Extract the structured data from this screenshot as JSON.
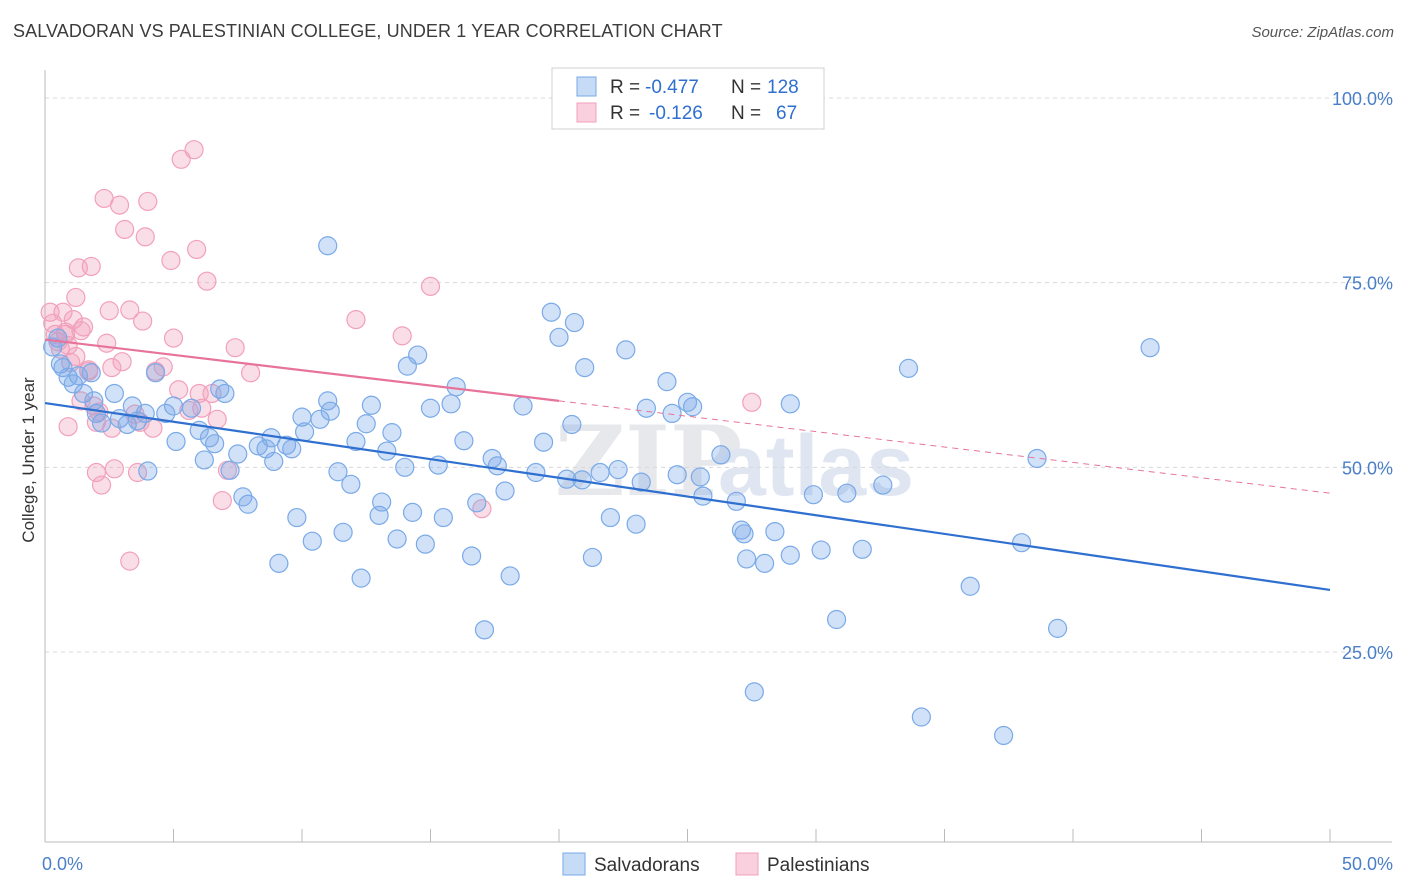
{
  "title": "SALVADORAN VS PALESTINIAN COLLEGE, UNDER 1 YEAR CORRELATION CHART",
  "source": "Source: ZipAtlas.com",
  "watermark": {
    "zip": "ZIP",
    "atlas": "atlas"
  },
  "colors": {
    "salvadoran": "#7aaae8",
    "salvadoran_line": "#2f6fd0",
    "palestinian": "#f2a0bb",
    "palestinian_line": "#e8739a",
    "axis_label": "#4a7fc8",
    "grid": "#d8d8d8"
  },
  "legend_top": {
    "rows": [
      {
        "r_label": "R = ",
        "r_value": "-0.477",
        "n_label": "N = ",
        "n_value": "128"
      },
      {
        "r_label": "R = ",
        "r_value": "-0.126",
        "n_label": "N = ",
        "n_value": "67"
      }
    ]
  },
  "chart_data": {
    "type": "scatter",
    "xlabel": "",
    "ylabel": "College, Under 1 year",
    "xlim": [
      0,
      50
    ],
    "ylim": [
      5,
      102
    ],
    "x_tick_labels": [
      {
        "value": 0,
        "label": "0.0%"
      },
      {
        "value": 50,
        "label": "50.0%"
      }
    ],
    "y_tick_labels": [
      {
        "value": 25,
        "label": "25.0%"
      },
      {
        "value": 50,
        "label": "50.0%"
      },
      {
        "value": 75,
        "label": "75.0%"
      },
      {
        "value": 100,
        "label": "100.0%"
      }
    ],
    "grid": "horizontal dashed",
    "legend_position": "bottom",
    "series": [
      {
        "name": "Salvadorans",
        "r": -0.477,
        "n": 128,
        "trend": {
          "x0": 0,
          "y0": 58.7,
          "x1": 50,
          "y1": 33.4
        },
        "points": [
          [
            0.3,
            66.3
          ],
          [
            0.5,
            67.5
          ],
          [
            0.6,
            64.0
          ],
          [
            0.7,
            63.5
          ],
          [
            0.9,
            62.2
          ],
          [
            1.1,
            61.3
          ],
          [
            1.3,
            62.4
          ],
          [
            1.5,
            60.0
          ],
          [
            1.8,
            62.8
          ],
          [
            1.9,
            59.0
          ],
          [
            2.0,
            57.3
          ],
          [
            2.2,
            56.0
          ],
          [
            2.7,
            60.0
          ],
          [
            2.9,
            56.6
          ],
          [
            3.2,
            55.8
          ],
          [
            3.4,
            58.3
          ],
          [
            3.6,
            56.3
          ],
          [
            3.9,
            57.3
          ],
          [
            4.0,
            49.5
          ],
          [
            4.3,
            62.8
          ],
          [
            4.7,
            57.3
          ],
          [
            5.0,
            58.3
          ],
          [
            5.1,
            53.5
          ],
          [
            5.7,
            58.0
          ],
          [
            6.0,
            55.0
          ],
          [
            6.2,
            51.0
          ],
          [
            6.4,
            54.0
          ],
          [
            6.6,
            53.2
          ],
          [
            6.8,
            60.6
          ],
          [
            7.0,
            60.0
          ],
          [
            7.2,
            49.6
          ],
          [
            7.5,
            51.8
          ],
          [
            7.7,
            46.0
          ],
          [
            7.9,
            45.0
          ],
          [
            8.3,
            52.9
          ],
          [
            8.6,
            52.5
          ],
          [
            8.8,
            54.0
          ],
          [
            8.9,
            50.8
          ],
          [
            9.1,
            37.0
          ],
          [
            9.4,
            53.0
          ],
          [
            9.6,
            52.5
          ],
          [
            9.8,
            43.2
          ],
          [
            10.0,
            56.8
          ],
          [
            10.1,
            54.8
          ],
          [
            10.4,
            40.0
          ],
          [
            10.7,
            56.5
          ],
          [
            11.0,
            59.0
          ],
          [
            11.1,
            57.6
          ],
          [
            11.4,
            49.4
          ],
          [
            11.0,
            80.0
          ],
          [
            11.6,
            41.2
          ],
          [
            11.9,
            47.7
          ],
          [
            12.1,
            53.5
          ],
          [
            12.3,
            35.0
          ],
          [
            12.5,
            55.9
          ],
          [
            12.7,
            58.4
          ],
          [
            13.0,
            43.5
          ],
          [
            13.1,
            45.3
          ],
          [
            13.3,
            52.2
          ],
          [
            13.5,
            54.7
          ],
          [
            13.7,
            40.3
          ],
          [
            14.0,
            50.0
          ],
          [
            14.1,
            63.7
          ],
          [
            14.3,
            43.9
          ],
          [
            14.5,
            65.2
          ],
          [
            14.8,
            39.6
          ],
          [
            15.0,
            58.0
          ],
          [
            15.3,
            50.3
          ],
          [
            15.5,
            43.2
          ],
          [
            15.8,
            58.6
          ],
          [
            16.0,
            60.9
          ],
          [
            16.3,
            53.6
          ],
          [
            16.6,
            38.0
          ],
          [
            16.8,
            45.2
          ],
          [
            17.1,
            28.0
          ],
          [
            17.4,
            51.2
          ],
          [
            17.6,
            50.2
          ],
          [
            17.9,
            46.8
          ],
          [
            18.1,
            35.3
          ],
          [
            18.6,
            58.3
          ],
          [
            19.1,
            49.3
          ],
          [
            19.4,
            53.4
          ],
          [
            19.7,
            71.0
          ],
          [
            20.0,
            67.6
          ],
          [
            20.3,
            48.4
          ],
          [
            20.5,
            55.8
          ],
          [
            20.6,
            69.6
          ],
          [
            20.9,
            48.3
          ],
          [
            21.0,
            63.5
          ],
          [
            21.3,
            37.8
          ],
          [
            21.6,
            49.3
          ],
          [
            22.0,
            43.2
          ],
          [
            22.3,
            49.7
          ],
          [
            22.6,
            65.9
          ],
          [
            23.0,
            42.3
          ],
          [
            23.2,
            48.0
          ],
          [
            23.4,
            58.0
          ],
          [
            24.2,
            61.6
          ],
          [
            24.4,
            57.3
          ],
          [
            24.6,
            49.0
          ],
          [
            25.0,
            58.8
          ],
          [
            25.2,
            58.2
          ],
          [
            25.5,
            48.7
          ],
          [
            25.6,
            46.1
          ],
          [
            26.3,
            51.7
          ],
          [
            26.9,
            45.4
          ],
          [
            27.1,
            41.5
          ],
          [
            27.2,
            41.0
          ],
          [
            27.3,
            37.6
          ],
          [
            27.6,
            19.6
          ],
          [
            28.0,
            37.0
          ],
          [
            28.4,
            41.3
          ],
          [
            29.0,
            38.1
          ],
          [
            29.0,
            58.6
          ],
          [
            29.9,
            46.3
          ],
          [
            30.2,
            38.8
          ],
          [
            30.8,
            29.4
          ],
          [
            31.2,
            46.5
          ],
          [
            31.8,
            38.9
          ],
          [
            32.6,
            47.6
          ],
          [
            33.6,
            63.4
          ],
          [
            34.1,
            16.2
          ],
          [
            36.0,
            33.9
          ],
          [
            37.3,
            13.7
          ],
          [
            38.0,
            39.8
          ],
          [
            38.6,
            51.2
          ],
          [
            39.4,
            28.2
          ],
          [
            43.0,
            66.2
          ]
        ]
      },
      {
        "name": "Palestinians",
        "r": -0.126,
        "n": 67,
        "trend": {
          "x0": 0,
          "y0": 67.3,
          "x1": 20.0,
          "y1": 59.0,
          "dash_x1": 50,
          "dash_y1": 46.5
        },
        "points": [
          [
            0.2,
            71.0
          ],
          [
            0.3,
            69.5
          ],
          [
            0.4,
            68.0
          ],
          [
            0.5,
            67.0
          ],
          [
            0.6,
            66.0
          ],
          [
            0.7,
            71.0
          ],
          [
            0.8,
            68.3
          ],
          [
            0.9,
            66.5
          ],
          [
            1.0,
            64.2
          ],
          [
            1.1,
            70.0
          ],
          [
            1.2,
            73.0
          ],
          [
            1.3,
            77.0
          ],
          [
            1.4,
            68.5
          ],
          [
            1.5,
            69.0
          ],
          [
            1.7,
            63.0
          ],
          [
            1.8,
            77.2
          ],
          [
            1.9,
            58.3
          ],
          [
            2.0,
            56.1
          ],
          [
            2.1,
            57.5
          ],
          [
            2.3,
            86.4
          ],
          [
            2.4,
            66.8
          ],
          [
            2.5,
            71.2
          ],
          [
            2.6,
            55.3
          ],
          [
            2.7,
            49.8
          ],
          [
            2.9,
            85.5
          ],
          [
            3.1,
            82.2
          ],
          [
            3.3,
            71.3
          ],
          [
            3.5,
            57.2
          ],
          [
            3.7,
            56.1
          ],
          [
            3.8,
            69.8
          ],
          [
            3.9,
            81.2
          ],
          [
            4.0,
            86.0
          ],
          [
            4.2,
            55.3
          ],
          [
            4.6,
            63.6
          ],
          [
            4.9,
            78.0
          ],
          [
            5.0,
            67.5
          ],
          [
            5.2,
            60.5
          ],
          [
            5.3,
            91.7
          ],
          [
            5.6,
            57.7
          ],
          [
            5.8,
            93.0
          ],
          [
            5.9,
            79.5
          ],
          [
            6.1,
            58.0
          ],
          [
            6.3,
            75.2
          ],
          [
            6.5,
            60.0
          ],
          [
            6.7,
            56.5
          ],
          [
            6.9,
            45.5
          ],
          [
            7.1,
            49.6
          ],
          [
            7.4,
            66.2
          ],
          [
            8.0,
            62.8
          ],
          [
            12.1,
            70.0
          ],
          [
            13.9,
            67.8
          ],
          [
            15.0,
            74.5
          ],
          [
            17.0,
            44.4
          ],
          [
            27.5,
            58.8
          ],
          [
            0.9,
            55.5
          ],
          [
            1.4,
            59.0
          ],
          [
            2.0,
            49.3
          ],
          [
            2.2,
            47.6
          ],
          [
            3.0,
            64.3
          ],
          [
            3.3,
            37.3
          ],
          [
            3.6,
            49.3
          ],
          [
            1.7,
            63.2
          ],
          [
            2.6,
            63.5
          ],
          [
            4.3,
            63.0
          ],
          [
            6.0,
            60.0
          ],
          [
            1.2,
            65.0
          ],
          [
            0.8,
            68.0
          ]
        ]
      }
    ]
  }
}
